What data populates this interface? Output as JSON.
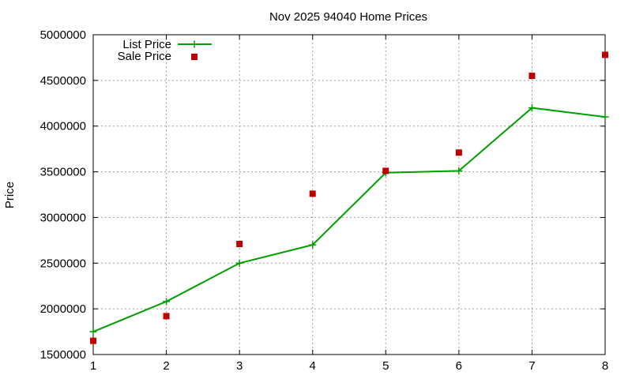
{
  "chart_data": {
    "type": "line",
    "title": "Nov 2025 94040 Home Prices",
    "xlabel": "",
    "ylabel": "Price",
    "xlim": [
      1,
      8
    ],
    "ylim": [
      1500000,
      5000000
    ],
    "x": [
      1,
      2,
      3,
      4,
      5,
      6,
      7,
      8
    ],
    "x_ticks": [
      "1",
      "2",
      "3",
      "4",
      "5",
      "6",
      "7",
      "8"
    ],
    "y_ticks": [
      "1500000",
      "2000000",
      "2500000",
      "3000000",
      "3500000",
      "4000000",
      "4500000",
      "5000000"
    ],
    "grid": true,
    "legend_position": "top-left",
    "series": [
      {
        "name": "List Price",
        "style": "line-points",
        "marker": "plus",
        "color": "#009e00",
        "values": [
          1750000,
          2080000,
          2500000,
          2700000,
          3490000,
          3510000,
          4200000,
          4100000
        ]
      },
      {
        "name": "Sale Price",
        "style": "points",
        "marker": "square",
        "color": "#c00000",
        "values": [
          1650000,
          1920000,
          2710000,
          3260000,
          3510000,
          3710000,
          4550000,
          4780000
        ]
      }
    ]
  }
}
